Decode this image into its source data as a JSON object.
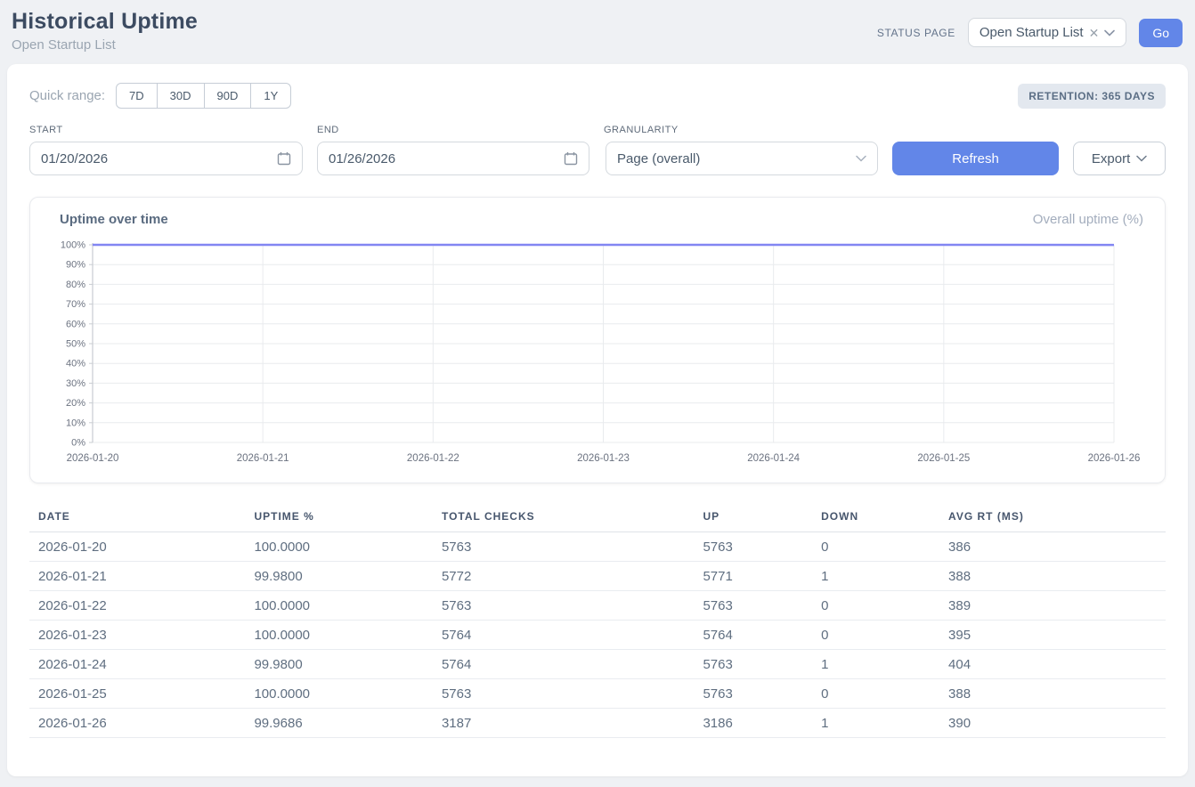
{
  "header": {
    "title": "Historical Uptime",
    "subtitle": "Open Startup List",
    "status_page_label": "STATUS PAGE",
    "status_page_value": "Open Startup List",
    "clear_icon": "✕",
    "go_label": "Go"
  },
  "filters": {
    "quick_range_label": "Quick range:",
    "quick_ranges": [
      "7D",
      "30D",
      "90D",
      "1Y"
    ],
    "retention_badge": "RETENTION: 365 DAYS",
    "start_label": "START",
    "start_value": "01/20/2026",
    "end_label": "END",
    "end_value": "01/26/2026",
    "granularity_label": "GRANULARITY",
    "granularity_value": "Page (overall)",
    "refresh_label": "Refresh",
    "export_label": "Export"
  },
  "chart": {
    "title": "Uptime over time",
    "legend_label": "Overall uptime (%)"
  },
  "chart_data": {
    "type": "line",
    "title": "Uptime over time",
    "x": [
      "2026-01-20",
      "2026-01-21",
      "2026-01-22",
      "2026-01-23",
      "2026-01-24",
      "2026-01-25",
      "2026-01-26"
    ],
    "series": [
      {
        "name": "Overall uptime (%)",
        "values": [
          100.0,
          99.98,
          100.0,
          100.0,
          99.98,
          100.0,
          99.9686
        ]
      }
    ],
    "ylim": [
      0,
      100
    ],
    "ytick_step": 10,
    "ytick_suffix": "%",
    "grid": true,
    "legend_position": "top-right",
    "line_color": "#8286f2",
    "grid_color": "#e9ebee",
    "axis_color": "#c9ccd2",
    "tick_label_color": "#6b7280"
  },
  "table": {
    "columns": [
      "DATE",
      "UPTIME %",
      "TOTAL CHECKS",
      "UP",
      "DOWN",
      "AVG RT (MS)"
    ],
    "rows": [
      [
        "2026-01-20",
        "100.0000",
        "5763",
        "5763",
        "0",
        "386"
      ],
      [
        "2026-01-21",
        "99.9800",
        "5772",
        "5771",
        "1",
        "388"
      ],
      [
        "2026-01-22",
        "100.0000",
        "5763",
        "5763",
        "0",
        "389"
      ],
      [
        "2026-01-23",
        "100.0000",
        "5764",
        "5764",
        "0",
        "395"
      ],
      [
        "2026-01-24",
        "99.9800",
        "5764",
        "5763",
        "1",
        "404"
      ],
      [
        "2026-01-25",
        "100.0000",
        "5763",
        "5763",
        "0",
        "388"
      ],
      [
        "2026-01-26",
        "99.9686",
        "3187",
        "3186",
        "1",
        "390"
      ]
    ]
  }
}
